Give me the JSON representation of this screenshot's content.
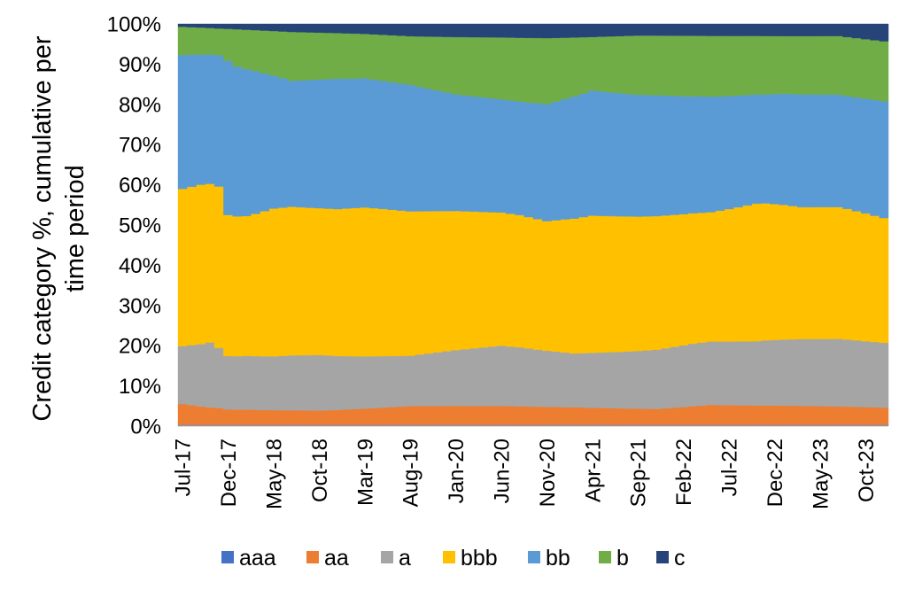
{
  "chart_data": {
    "type": "area",
    "stacked": true,
    "ylabel_lines": [
      "Credit category %, cumulative per",
      "time period"
    ],
    "ylim": [
      0,
      100
    ],
    "y_ticks": [
      "0%",
      "10%",
      "20%",
      "30%",
      "40%",
      "50%",
      "60%",
      "70%",
      "80%",
      "90%",
      "100%"
    ],
    "x_tick_labels": [
      "Jul-17",
      "Dec-17",
      "May-18",
      "Oct-18",
      "Mar-19",
      "Aug-19",
      "Jan-20",
      "Jun-20",
      "Nov-20",
      "Apr-21",
      "Sep-21",
      "Feb-22",
      "Jul-22",
      "Dec-22",
      "May-23",
      "Oct-23"
    ],
    "x_start": "Jul-17",
    "x_end": "Dec-23",
    "x_step": "month",
    "legend_position": "bottom",
    "grid": false,
    "series": [
      {
        "name": "aaa",
        "color": "#4472C4",
        "anchors": [
          [
            0,
            0.3
          ],
          [
            77,
            0.3
          ]
        ]
      },
      {
        "name": "aa",
        "color": "#ED7D31",
        "anchors": [
          [
            0,
            5.2
          ],
          [
            5,
            3.8
          ],
          [
            15,
            3.6
          ],
          [
            25,
            4.6
          ],
          [
            35,
            4.7
          ],
          [
            45,
            4.2
          ],
          [
            52,
            4.0
          ],
          [
            58,
            5.0
          ],
          [
            65,
            4.8
          ],
          [
            72,
            4.6
          ],
          [
            77,
            4.3
          ]
        ]
      },
      {
        "name": "a",
        "color": "#A5A5A5",
        "anchors": [
          [
            0,
            14.4
          ],
          [
            3,
            16.2
          ],
          [
            5,
            13.1
          ],
          [
            15,
            14.0
          ],
          [
            25,
            12.3
          ],
          [
            35,
            15.0
          ],
          [
            43,
            13.2
          ],
          [
            48,
            14.0
          ],
          [
            56,
            15.7
          ],
          [
            65,
            16.3
          ],
          [
            72,
            16.8
          ],
          [
            77,
            16.1
          ]
        ]
      },
      {
        "name": "bbb",
        "color": "#FFC000",
        "anchors": [
          [
            0,
            39.1
          ],
          [
            2,
            39.9
          ],
          [
            4,
            39.2
          ],
          [
            5,
            34.6
          ],
          [
            7,
            34.5
          ],
          [
            10,
            37.2
          ],
          [
            15,
            37.0
          ],
          [
            20,
            37.5
          ],
          [
            25,
            35.3
          ],
          [
            30,
            34.0
          ],
          [
            35,
            33.1
          ],
          [
            40,
            32.0
          ],
          [
            45,
            33.7
          ],
          [
            52,
            33.5
          ],
          [
            58,
            32.3
          ],
          [
            63,
            34.5
          ],
          [
            68,
            32.6
          ],
          [
            72,
            32.8
          ],
          [
            77,
            31.0
          ]
        ]
      },
      {
        "name": "bb",
        "color": "#5B9BD5",
        "anchors": [
          [
            0,
            33.3
          ],
          [
            4,
            31.9
          ],
          [
            5,
            37.8
          ],
          [
            8,
            35.5
          ],
          [
            12,
            31.5
          ],
          [
            17,
            33.0
          ],
          [
            20,
            32.5
          ],
          [
            25,
            30.9
          ],
          [
            30,
            28.5
          ],
          [
            37,
            28.0
          ],
          [
            42,
            29.5
          ],
          [
            45,
            30.7
          ],
          [
            52,
            30.3
          ],
          [
            58,
            28.9
          ],
          [
            64,
            27.1
          ],
          [
            68,
            27.9
          ],
          [
            73,
            28.0
          ],
          [
            77,
            29.0
          ]
        ]
      },
      {
        "name": "b",
        "color": "#70AD47",
        "anchors": [
          [
            0,
            7.0
          ],
          [
            4,
            6.5
          ],
          [
            6,
            9.2
          ],
          [
            12,
            12.2
          ],
          [
            20,
            11.2
          ],
          [
            25,
            11.9
          ],
          [
            30,
            14.0
          ],
          [
            35,
            15.4
          ],
          [
            40,
            16.3
          ],
          [
            45,
            13.2
          ],
          [
            50,
            14.8
          ],
          [
            55,
            15.2
          ],
          [
            60,
            15.1
          ],
          [
            66,
            14.3
          ],
          [
            72,
            14.6
          ],
          [
            77,
            14.9
          ]
        ]
      },
      {
        "name": "c",
        "color": "#264478",
        "anchors": [
          [
            0,
            0.7
          ],
          [
            5,
            1.2
          ],
          [
            12,
            2.0
          ],
          [
            20,
            2.5
          ],
          [
            25,
            3.0
          ],
          [
            30,
            3.2
          ],
          [
            40,
            3.5
          ],
          [
            50,
            2.9
          ],
          [
            60,
            3.0
          ],
          [
            72,
            3.0
          ],
          [
            77,
            4.3
          ]
        ]
      }
    ]
  }
}
